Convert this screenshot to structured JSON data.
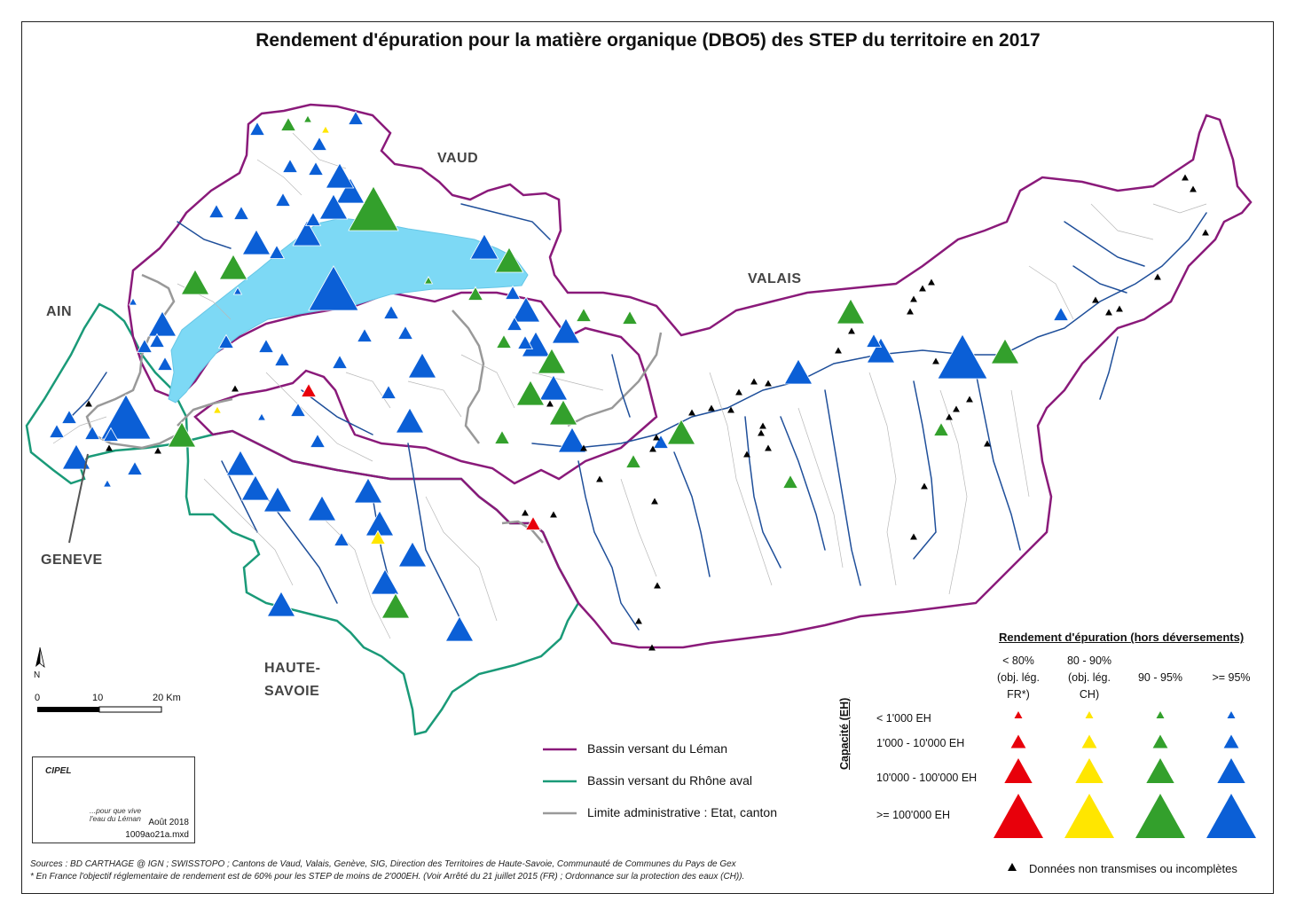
{
  "title": "Rendement d'épuration pour la matière organique (DBO5) des STEP du territoire en 2017",
  "regions": {
    "vaud": "VAUD",
    "valais": "VALAIS",
    "ain": "AIN",
    "geneve": "GENEVE",
    "haute_savoie_1": "HAUTE-",
    "haute_savoie_2": "SAVOIE"
  },
  "colors": {
    "lt80": "#e8000b",
    "p80_90": "#ffe600",
    "p90_95": "#33a02c",
    "gte95": "#0b5fd6",
    "lake": "#7dd9f5",
    "leman_basin": "#8a1a7a",
    "rhone_basin": "#1a9a78",
    "admin_limit": "#999999",
    "rivers": "#1f4f9a",
    "missing_data": "#000000"
  },
  "legend": {
    "title": "Rendement d'épuration (hors déversements)",
    "columns": [
      {
        "line1": "< 80%",
        "line2": "(obj. lég.",
        "line3": "FR*)"
      },
      {
        "line1": "80 - 90%",
        "line2": "(obj. lég.",
        "line3": "CH)"
      },
      {
        "line1": "90 - 95%"
      },
      {
        "line1": ">= 95%"
      }
    ],
    "capacity_axis": "Capacité (EH)",
    "rows": [
      "< 1'000 EH",
      "1'000 - 10'000 EH",
      "10'000 - 100'000 EH",
      ">= 100'000 EH"
    ],
    "missing": "Données non transmises ou incomplètes"
  },
  "line_legend": {
    "leman": "Bassin versant du Léman",
    "rhone": "Bassin versant du Rhône aval",
    "admin": "Limite administrative : Etat, canton"
  },
  "scale": {
    "zero": "0",
    "mid": "10",
    "end": "20 Km"
  },
  "north": "N",
  "logo": {
    "name": "CIPEL",
    "slogan_1": "...pour que vive",
    "slogan_2": "l'eau du Léman",
    "date": "Août 2018",
    "file": "1009ao21a.mxd"
  },
  "sources": {
    "line1": "Sources : BD CARTHAGE @ IGN ; SWISSTOPO ; Cantons de Vaud, Valais, Genève, SIG, Direction des Territoires de Haute-Savoie, Communauté de Communes du Pays de Gex",
    "line2": "* En France l'objectif réglementaire de rendement est de 60% pour les STEP de moins de 2'000EH. (Voir Arrêté du 21 juillet 2015 (FR) ; Ordonnance sur la protection des eaux (CH))."
  },
  "stations": [
    {
      "c": "gte95",
      "s": 4,
      "lon": 376,
      "lat": 325
    },
    {
      "c": "gte95",
      "s": 4,
      "lon": 142,
      "lat": 470
    },
    {
      "c": "gte95",
      "s": 4,
      "lon": 1085,
      "lat": 402
    },
    {
      "c": "p90_95",
      "s": 4,
      "lon": 421,
      "lat": 235
    },
    {
      "c": "gte95",
      "s": 3,
      "lon": 183,
      "lat": 365
    },
    {
      "c": "gte95",
      "s": 3,
      "lon": 395,
      "lat": 215
    },
    {
      "c": "gte95",
      "s": 3,
      "lon": 376,
      "lat": 233
    },
    {
      "c": "gte95",
      "s": 3,
      "lon": 346,
      "lat": 263
    },
    {
      "c": "gte95",
      "s": 3,
      "lon": 289,
      "lat": 273
    },
    {
      "c": "gte95",
      "s": 3,
      "lon": 546,
      "lat": 278
    },
    {
      "c": "gte95",
      "s": 3,
      "lon": 593,
      "lat": 349
    },
    {
      "c": "gte95",
      "s": 3,
      "lon": 638,
      "lat": 373
    },
    {
      "c": "gte95",
      "s": 3,
      "lon": 604,
      "lat": 388
    },
    {
      "c": "gte95",
      "s": 3,
      "lon": 476,
      "lat": 412
    },
    {
      "c": "gte95",
      "s": 3,
      "lon": 624,
      "lat": 437
    },
    {
      "c": "gte95",
      "s": 3,
      "lon": 462,
      "lat": 474
    },
    {
      "c": "gte95",
      "s": 3,
      "lon": 645,
      "lat": 496
    },
    {
      "c": "gte95",
      "s": 3,
      "lon": 271,
      "lat": 522
    },
    {
      "c": "gte95",
      "s": 3,
      "lon": 288,
      "lat": 550
    },
    {
      "c": "gte95",
      "s": 3,
      "lon": 313,
      "lat": 563
    },
    {
      "c": "gte95",
      "s": 3,
      "lon": 363,
      "lat": 573
    },
    {
      "c": "gte95",
      "s": 3,
      "lon": 415,
      "lat": 553
    },
    {
      "c": "gte95",
      "s": 3,
      "lon": 428,
      "lat": 590
    },
    {
      "c": "gte95",
      "s": 3,
      "lon": 465,
      "lat": 625
    },
    {
      "c": "gte95",
      "s": 3,
      "lon": 434,
      "lat": 656
    },
    {
      "c": "gte95",
      "s": 3,
      "lon": 317,
      "lat": 681
    },
    {
      "c": "gte95",
      "s": 3,
      "lon": 518,
      "lat": 709
    },
    {
      "c": "gte95",
      "s": 3,
      "lon": 900,
      "lat": 419
    },
    {
      "c": "gte95",
      "s": 3,
      "lon": 993,
      "lat": 395
    },
    {
      "c": "gte95",
      "s": 3,
      "lon": 86,
      "lat": 515
    },
    {
      "c": "gte95",
      "s": 3,
      "lon": 383,
      "lat": 198
    },
    {
      "c": "p90_95",
      "s": 3,
      "lon": 574,
      "lat": 293
    },
    {
      "c": "p90_95",
      "s": 3,
      "lon": 263,
      "lat": 301
    },
    {
      "c": "p90_95",
      "s": 3,
      "lon": 220,
      "lat": 318
    },
    {
      "c": "p90_95",
      "s": 3,
      "lon": 205,
      "lat": 490
    },
    {
      "c": "p90_95",
      "s": 3,
      "lon": 598,
      "lat": 443
    },
    {
      "c": "p90_95",
      "s": 3,
      "lon": 635,
      "lat": 465
    },
    {
      "c": "p90_95",
      "s": 3,
      "lon": 622,
      "lat": 407
    },
    {
      "c": "p90_95",
      "s": 3,
      "lon": 768,
      "lat": 487
    },
    {
      "c": "p90_95",
      "s": 3,
      "lon": 959,
      "lat": 351
    },
    {
      "c": "p90_95",
      "s": 3,
      "lon": 1133,
      "lat": 396
    },
    {
      "c": "p90_95",
      "s": 3,
      "lon": 446,
      "lat": 683
    },
    {
      "c": "gte95",
      "s": 2,
      "lon": 177,
      "lat": 384
    },
    {
      "c": "gte95",
      "s": 2,
      "lon": 186,
      "lat": 410
    },
    {
      "c": "gte95",
      "s": 2,
      "lon": 163,
      "lat": 390
    },
    {
      "c": "gte95",
      "s": 2,
      "lon": 244,
      "lat": 238
    },
    {
      "c": "gte95",
      "s": 2,
      "lon": 272,
      "lat": 240
    },
    {
      "c": "gte95",
      "s": 2,
      "lon": 327,
      "lat": 187
    },
    {
      "c": "gte95",
      "s": 2,
      "lon": 356,
      "lat": 190
    },
    {
      "c": "gte95",
      "s": 2,
      "lon": 401,
      "lat": 133
    },
    {
      "c": "gte95",
      "s": 2,
      "lon": 319,
      "lat": 225
    },
    {
      "c": "gte95",
      "s": 2,
      "lon": 312,
      "lat": 284
    },
    {
      "c": "gte95",
      "s": 2,
      "lon": 353,
      "lat": 247
    },
    {
      "c": "gte95",
      "s": 2,
      "lon": 300,
      "lat": 390
    },
    {
      "c": "gte95",
      "s": 2,
      "lon": 318,
      "lat": 405
    },
    {
      "c": "gte95",
      "s": 2,
      "lon": 255,
      "lat": 385
    },
    {
      "c": "gte95",
      "s": 2,
      "lon": 383,
      "lat": 408
    },
    {
      "c": "gte95",
      "s": 2,
      "lon": 411,
      "lat": 378
    },
    {
      "c": "gte95",
      "s": 2,
      "lon": 441,
      "lat": 352
    },
    {
      "c": "gte95",
      "s": 2,
      "lon": 457,
      "lat": 375
    },
    {
      "c": "gte95",
      "s": 2,
      "lon": 438,
      "lat": 442
    },
    {
      "c": "gte95",
      "s": 2,
      "lon": 580,
      "lat": 365
    },
    {
      "c": "gte95",
      "s": 2,
      "lon": 592,
      "lat": 386
    },
    {
      "c": "gte95",
      "s": 2,
      "lon": 578,
      "lat": 330
    },
    {
      "c": "gte95",
      "s": 2,
      "lon": 336,
      "lat": 462
    },
    {
      "c": "gte95",
      "s": 2,
      "lon": 358,
      "lat": 497
    },
    {
      "c": "gte95",
      "s": 2,
      "lon": 385,
      "lat": 608
    },
    {
      "c": "gte95",
      "s": 2,
      "lon": 64,
      "lat": 486
    },
    {
      "c": "gte95",
      "s": 2,
      "lon": 78,
      "lat": 470
    },
    {
      "c": "gte95",
      "s": 2,
      "lon": 104,
      "lat": 488
    },
    {
      "c": "gte95",
      "s": 2,
      "lon": 125,
      "lat": 490
    },
    {
      "c": "gte95",
      "s": 2,
      "lon": 152,
      "lat": 528
    },
    {
      "c": "gte95",
      "s": 2,
      "lon": 985,
      "lat": 384
    },
    {
      "c": "gte95",
      "s": 2,
      "lon": 745,
      "lat": 498
    },
    {
      "c": "gte95",
      "s": 2,
      "lon": 1196,
      "lat": 354
    },
    {
      "c": "gte95",
      "s": 2,
      "lon": 360,
      "lat": 162
    },
    {
      "c": "gte95",
      "s": 2,
      "lon": 290,
      "lat": 145
    },
    {
      "c": "p90_95",
      "s": 2,
      "lon": 325,
      "lat": 140
    },
    {
      "c": "p90_95",
      "s": 2,
      "lon": 536,
      "lat": 331
    },
    {
      "c": "p90_95",
      "s": 2,
      "lon": 568,
      "lat": 385
    },
    {
      "c": "p90_95",
      "s": 2,
      "lon": 658,
      "lat": 355
    },
    {
      "c": "p90_95",
      "s": 2,
      "lon": 710,
      "lat": 358
    },
    {
      "c": "p90_95",
      "s": 2,
      "lon": 714,
      "lat": 520
    },
    {
      "c": "p90_95",
      "s": 2,
      "lon": 891,
      "lat": 543
    },
    {
      "c": "p90_95",
      "s": 2,
      "lon": 1061,
      "lat": 484
    },
    {
      "c": "p90_95",
      "s": 2,
      "lon": 566,
      "lat": 493
    },
    {
      "c": "lt80",
      "s": 2,
      "lon": 348,
      "lat": 440
    },
    {
      "c": "lt80",
      "s": 2,
      "lon": 601,
      "lat": 590
    },
    {
      "c": "p80_90",
      "s": 2,
      "lon": 426,
      "lat": 606
    },
    {
      "c": "gte95",
      "s": 1,
      "lon": 268,
      "lat": 328
    },
    {
      "c": "gte95",
      "s": 1,
      "lon": 295,
      "lat": 470
    },
    {
      "c": "gte95",
      "s": 1,
      "lon": 121,
      "lat": 545
    },
    {
      "c": "gte95",
      "s": 1,
      "lon": 150,
      "lat": 340
    },
    {
      "c": "p90_95",
      "s": 1,
      "lon": 483,
      "lat": 316
    },
    {
      "c": "p90_95",
      "s": 1,
      "lon": 347,
      "lat": 134
    },
    {
      "c": "p80_90",
      "s": 1,
      "lon": 367,
      "lat": 146
    },
    {
      "c": "p80_90",
      "s": 1,
      "lon": 245,
      "lat": 462
    }
  ],
  "missing_points": [
    {
      "lon": 1336,
      "lat": 200
    },
    {
      "lon": 1345,
      "lat": 213
    },
    {
      "lon": 1359,
      "lat": 262
    },
    {
      "lon": 1305,
      "lat": 312
    },
    {
      "lon": 1040,
      "lat": 325
    },
    {
      "lon": 1050,
      "lat": 318
    },
    {
      "lon": 1030,
      "lat": 337
    },
    {
      "lon": 1026,
      "lat": 351
    },
    {
      "lon": 1235,
      "lat": 338
    },
    {
      "lon": 1250,
      "lat": 352
    },
    {
      "lon": 1262,
      "lat": 348
    },
    {
      "lon": 960,
      "lat": 373
    },
    {
      "lon": 945,
      "lat": 395
    },
    {
      "lon": 866,
      "lat": 432
    },
    {
      "lon": 850,
      "lat": 430
    },
    {
      "lon": 833,
      "lat": 442
    },
    {
      "lon": 802,
      "lat": 460
    },
    {
      "lon": 824,
      "lat": 462
    },
    {
      "lon": 780,
      "lat": 465
    },
    {
      "lon": 740,
      "lat": 493
    },
    {
      "lon": 736,
      "lat": 506
    },
    {
      "lon": 858,
      "lat": 488
    },
    {
      "lon": 866,
      "lat": 505
    },
    {
      "lon": 860,
      "lat": 480
    },
    {
      "lon": 842,
      "lat": 512
    },
    {
      "lon": 1078,
      "lat": 461
    },
    {
      "lon": 1070,
      "lat": 470
    },
    {
      "lon": 1093,
      "lat": 450
    },
    {
      "lon": 1113,
      "lat": 500
    },
    {
      "lon": 1042,
      "lat": 548
    },
    {
      "lon": 1030,
      "lat": 605
    },
    {
      "lon": 1055,
      "lat": 407
    },
    {
      "lon": 676,
      "lat": 540
    },
    {
      "lon": 738,
      "lat": 565
    },
    {
      "lon": 624,
      "lat": 580
    },
    {
      "lon": 592,
      "lat": 578
    },
    {
      "lon": 741,
      "lat": 660
    },
    {
      "lon": 720,
      "lat": 700
    },
    {
      "lon": 735,
      "lat": 730
    },
    {
      "lon": 265,
      "lat": 438
    },
    {
      "lon": 100,
      "lat": 455
    },
    {
      "lon": 123,
      "lat": 505
    },
    {
      "lon": 178,
      "lat": 508
    },
    {
      "lon": 658,
      "lat": 505
    },
    {
      "lon": 620,
      "lat": 455
    }
  ]
}
